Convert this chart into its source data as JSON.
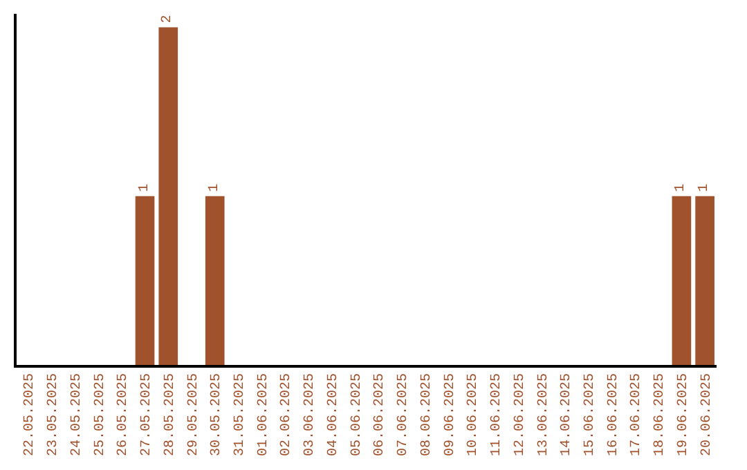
{
  "chart_data": {
    "type": "bar",
    "categories": [
      "22.05.2025",
      "23.05.2025",
      "24.05.2025",
      "25.05.2025",
      "26.05.2025",
      "27.05.2025",
      "28.05.2025",
      "29.05.2025",
      "30.05.2025",
      "31.05.2025",
      "01.06.2025",
      "02.06.2025",
      "03.06.2025",
      "04.06.2025",
      "05.06.2025",
      "06.06.2025",
      "07.06.2025",
      "08.06.2025",
      "09.06.2025",
      "10.06.2025",
      "11.06.2025",
      "12.06.2025",
      "13.06.2025",
      "14.06.2025",
      "15.06.2025",
      "16.06.2025",
      "17.06.2025",
      "18.06.2025",
      "19.06.2025",
      "20.06.2025"
    ],
    "values": [
      0,
      0,
      0,
      0,
      0,
      1,
      2,
      0,
      1,
      0,
      0,
      0,
      0,
      0,
      0,
      0,
      0,
      0,
      0,
      0,
      0,
      0,
      0,
      0,
      0,
      0,
      0,
      0,
      1,
      1
    ],
    "value_labels": [
      null,
      null,
      null,
      null,
      null,
      "1",
      "2",
      null,
      "1",
      null,
      null,
      null,
      null,
      null,
      null,
      null,
      null,
      null,
      null,
      null,
      null,
      null,
      null,
      null,
      null,
      null,
      null,
      null,
      "1",
      "1"
    ],
    "color": "#a0522d",
    "ylim": [
      0,
      2.08
    ],
    "tick_labels": "x"
  }
}
